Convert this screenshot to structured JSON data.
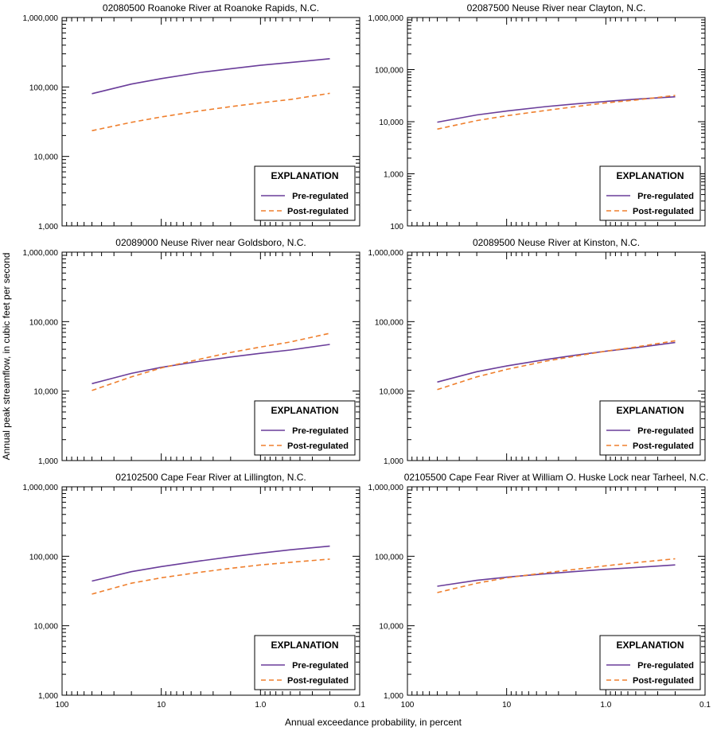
{
  "figure": {
    "ylabel": "Annual peak streamflow, in cubic feet per second",
    "xlabel": "Annual exceedance probability, in percent",
    "xticks": [
      {
        "value": 100,
        "label": "100"
      },
      {
        "value": 10,
        "label": "10"
      },
      {
        "value": 1,
        "label": "1.0"
      },
      {
        "value": 0.1,
        "label": "0.1"
      }
    ],
    "colors": {
      "pre": "#6a3d9a",
      "post": "#ef7f2d"
    },
    "legend": {
      "title": "EXPLANATION",
      "pre_label": "Pre-regulated",
      "post_label": "Post-regulated"
    }
  },
  "chart_data": [
    {
      "type": "line",
      "title": "02080500 Roanoke River at Roanoke Rapids, N.C.",
      "x_scale": "log-reversed",
      "y_scale": "log",
      "xlim": [
        100,
        0.1
      ],
      "ylim": [
        1000,
        1000000
      ],
      "yticks": [
        {
          "value": 1000,
          "label": "1,000"
        },
        {
          "value": 10000,
          "label": "10,000"
        },
        {
          "value": 100000,
          "label": "100,000"
        },
        {
          "value": 1000000,
          "label": "1,000,000"
        }
      ],
      "x": [
        50,
        20,
        10,
        4,
        2,
        1,
        0.5,
        0.2
      ],
      "series": [
        {
          "name": "Pre-regulated",
          "style": "solid",
          "values": [
            80000,
            110000,
            132000,
            162000,
            183000,
            205000,
            225000,
            255000
          ]
        },
        {
          "name": "Post-regulated",
          "style": "dashed",
          "values": [
            23500,
            31000,
            37000,
            45500,
            52000,
            59000,
            66000,
            81000
          ]
        }
      ],
      "legend": "bottom-right"
    },
    {
      "type": "line",
      "title": "02087500 Neuse River near Clayton, N.C.",
      "x_scale": "log-reversed",
      "y_scale": "log",
      "xlim": [
        100,
        0.1
      ],
      "ylim": [
        100,
        1000000
      ],
      "yticks": [
        {
          "value": 100,
          "label": "100"
        },
        {
          "value": 1000,
          "label": "1,000"
        },
        {
          "value": 10000,
          "label": "10,000"
        },
        {
          "value": 100000,
          "label": "100,000"
        },
        {
          "value": 1000000,
          "label": "1,000,000"
        }
      ],
      "x": [
        50,
        20,
        10,
        4,
        2,
        1,
        0.5,
        0.2
      ],
      "series": [
        {
          "name": "Pre-regulated",
          "style": "solid",
          "values": [
            9800,
            13500,
            16000,
            19500,
            22000,
            24500,
            27000,
            30000
          ]
        },
        {
          "name": "Post-regulated",
          "style": "dashed",
          "values": [
            7200,
            10500,
            13000,
            16500,
            19500,
            23000,
            26000,
            32000
          ]
        }
      ],
      "legend": "bottom-right"
    },
    {
      "type": "line",
      "title": "02089000 Neuse River near Goldsboro, N.C.",
      "x_scale": "log-reversed",
      "y_scale": "log",
      "xlim": [
        100,
        0.1
      ],
      "ylim": [
        1000,
        1000000
      ],
      "yticks": [
        {
          "value": 1000,
          "label": "1,000"
        },
        {
          "value": 10000,
          "label": "10,000"
        },
        {
          "value": 100000,
          "label": "100,000"
        },
        {
          "value": 1000000,
          "label": "1,000,000"
        }
      ],
      "x": [
        50,
        20,
        10,
        4,
        2,
        1,
        0.5,
        0.2
      ],
      "series": [
        {
          "name": "Pre-regulated",
          "style": "solid",
          "values": [
            12800,
            18000,
            22000,
            27000,
            31000,
            35000,
            39000,
            47000
          ]
        },
        {
          "name": "Post-regulated",
          "style": "dashed",
          "values": [
            10200,
            16000,
            21500,
            29000,
            36000,
            43000,
            51000,
            68000
          ]
        }
      ],
      "legend": "bottom-right"
    },
    {
      "type": "line",
      "title": "02089500 Neuse River at Kinston, N.C.",
      "x_scale": "log-reversed",
      "y_scale": "log",
      "xlim": [
        100,
        0.1
      ],
      "ylim": [
        1000,
        1000000
      ],
      "yticks": [
        {
          "value": 1000,
          "label": "1,000"
        },
        {
          "value": 10000,
          "label": "10,000"
        },
        {
          "value": 100000,
          "label": "100,000"
        },
        {
          "value": 1000000,
          "label": "1,000,000"
        }
      ],
      "x": [
        50,
        20,
        10,
        4,
        2,
        1,
        0.5,
        0.2
      ],
      "series": [
        {
          "name": "Pre-regulated",
          "style": "solid",
          "values": [
            13500,
            19000,
            23000,
            28500,
            33000,
            37500,
            42000,
            50000
          ]
        },
        {
          "name": "Post-regulated",
          "style": "dashed",
          "values": [
            10500,
            16000,
            20500,
            27000,
            32000,
            37500,
            43000,
            53000
          ]
        }
      ],
      "legend": "bottom-right"
    },
    {
      "type": "line",
      "title": "02102500 Cape Fear River at Lillington, N.C.",
      "x_scale": "log-reversed",
      "y_scale": "log",
      "xlim": [
        100,
        0.1
      ],
      "ylim": [
        1000,
        1000000
      ],
      "yticks": [
        {
          "value": 1000,
          "label": "1,000"
        },
        {
          "value": 10000,
          "label": "10,000"
        },
        {
          "value": 100000,
          "label": "100,000"
        },
        {
          "value": 1000000,
          "label": "1,000,000"
        }
      ],
      "x": [
        50,
        20,
        10,
        4,
        2,
        1,
        0.5,
        0.2
      ],
      "series": [
        {
          "name": "Pre-regulated",
          "style": "solid",
          "values": [
            44000,
            60000,
            71000,
            86000,
            98000,
            111000,
            124000,
            140000
          ]
        },
        {
          "name": "Post-regulated",
          "style": "dashed",
          "values": [
            28500,
            41000,
            49000,
            59000,
            67000,
            75000,
            82000,
            91000
          ]
        }
      ],
      "legend": "bottom-right"
    },
    {
      "type": "line",
      "title": "02105500 Cape Fear River at William O. Huske Lock near Tarheel, N.C.",
      "x_scale": "log-reversed",
      "y_scale": "log",
      "xlim": [
        100,
        0.1
      ],
      "ylim": [
        1000,
        1000000
      ],
      "yticks": [
        {
          "value": 1000,
          "label": "1,000"
        },
        {
          "value": 10000,
          "label": "10,000"
        },
        {
          "value": 100000,
          "label": "100,000"
        },
        {
          "value": 1000000,
          "label": "1,000,000"
        }
      ],
      "x": [
        50,
        20,
        10,
        4,
        2,
        1,
        0.5,
        0.2
      ],
      "series": [
        {
          "name": "Pre-regulated",
          "style": "solid",
          "values": [
            37000,
            45000,
            50000,
            56000,
            60500,
            65000,
            69000,
            75000
          ]
        },
        {
          "name": "Post-regulated",
          "style": "dashed",
          "values": [
            30000,
            41000,
            49000,
            58000,
            65000,
            73000,
            81000,
            92000
          ]
        }
      ],
      "legend": "bottom-right"
    }
  ]
}
